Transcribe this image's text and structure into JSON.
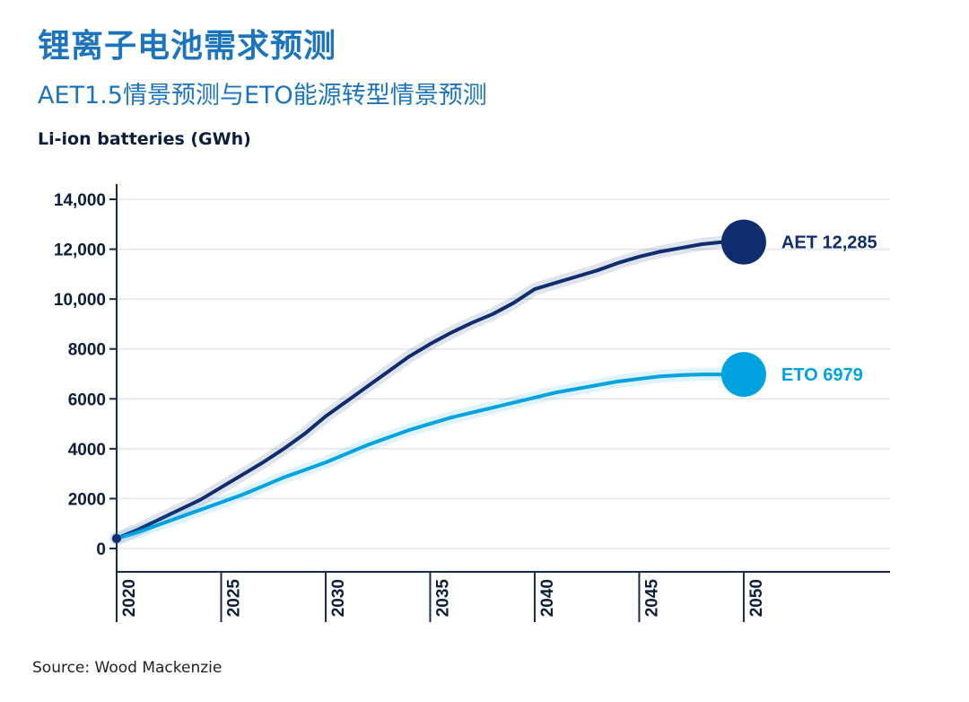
{
  "title": "锂离子电池需求预测",
  "subtitle": "AET1.5情景预测与ETO能源转型情景预测",
  "source": "Source: Wood Mackenzie",
  "colors": {
    "aet": "#0f2d6e",
    "eto": "#00a3e0",
    "title": "#1c75bc",
    "grid": "#e3e6ea",
    "axis": "#1a2a4a"
  },
  "chart_data": {
    "type": "line",
    "ylabel": "Li-ion batteries (GWh)",
    "ylim": [
      0,
      14000
    ],
    "xlim": [
      2020,
      2057
    ],
    "yticks": [
      {
        "value": 0,
        "label": "0"
      },
      {
        "value": 2000,
        "label": "2000"
      },
      {
        "value": 4000,
        "label": "4000"
      },
      {
        "value": 6000,
        "label": "6000"
      },
      {
        "value": 8000,
        "label": "8000"
      },
      {
        "value": 10000,
        "label": "10,000"
      },
      {
        "value": 12000,
        "label": "12,000"
      },
      {
        "value": 14000,
        "label": "14,000"
      }
    ],
    "xticks": [
      2020,
      2025,
      2030,
      2035,
      2040,
      2045,
      2050
    ],
    "grid": true,
    "series": [
      {
        "name": "AET",
        "end_label": "AET 12,285",
        "color": "#0f2d6e",
        "x": [
          2020,
          2021,
          2022,
          2023,
          2024,
          2025,
          2026,
          2027,
          2028,
          2029,
          2030,
          2031,
          2032,
          2033,
          2034,
          2035,
          2036,
          2037,
          2038,
          2039,
          2040,
          2041,
          2042,
          2043,
          2044,
          2045,
          2046,
          2047,
          2048,
          2049,
          2050
        ],
        "values": [
          400,
          750,
          1150,
          1550,
          1950,
          2450,
          2950,
          3450,
          4000,
          4600,
          5300,
          5900,
          6500,
          7100,
          7700,
          8200,
          8650,
          9050,
          9400,
          9850,
          10400,
          10650,
          10900,
          11150,
          11450,
          11700,
          11900,
          12050,
          12200,
          12285,
          12285
        ]
      },
      {
        "name": "ETO",
        "end_label": "ETO 6979",
        "color": "#00a3e0",
        "x": [
          2020,
          2021,
          2022,
          2023,
          2024,
          2025,
          2026,
          2027,
          2028,
          2029,
          2030,
          2031,
          2032,
          2033,
          2034,
          2035,
          2036,
          2037,
          2038,
          2039,
          2040,
          2041,
          2042,
          2043,
          2044,
          2045,
          2046,
          2047,
          2048,
          2049,
          2050
        ],
        "values": [
          400,
          650,
          950,
          1250,
          1550,
          1850,
          2150,
          2500,
          2850,
          3150,
          3450,
          3800,
          4150,
          4450,
          4750,
          5000,
          5250,
          5450,
          5650,
          5850,
          6050,
          6250,
          6400,
          6550,
          6700,
          6800,
          6900,
          6950,
          6979,
          6979,
          6979
        ]
      }
    ]
  }
}
